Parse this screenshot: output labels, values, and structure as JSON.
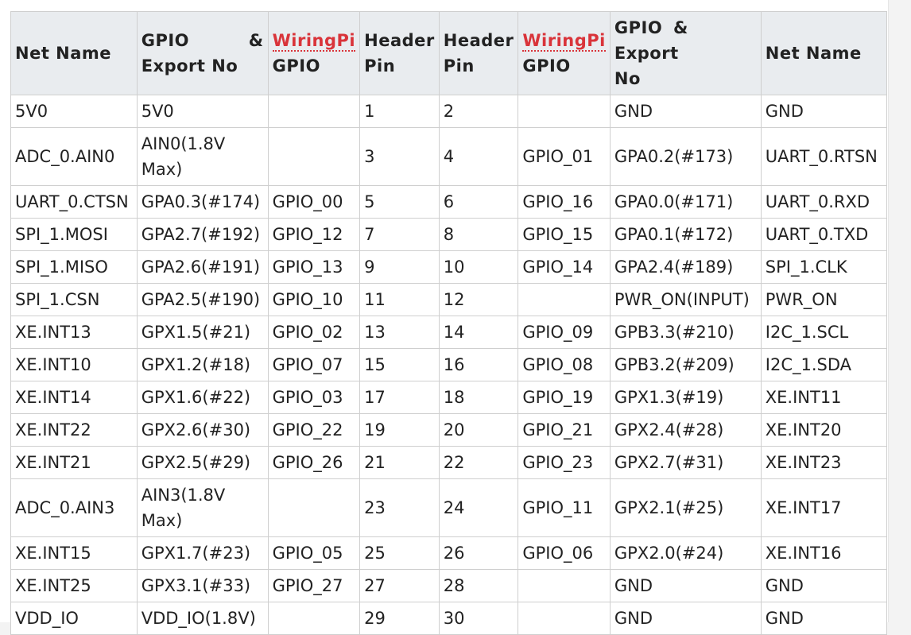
{
  "headers": {
    "net_name_left": "Net Name",
    "gpio_export_left_line1_a": "GPIO",
    "gpio_export_left_line1_b": "&",
    "gpio_export_left_line2": "Export No",
    "wiringpi_left": "WiringPi",
    "wiringpi_left_gpio": "GPIO",
    "header_left_line1": "Header",
    "header_left_line2": "Pin",
    "header_right_line1": "Header",
    "header_right_line2": "Pin",
    "wiringpi_right": "WiringPi",
    "wiringpi_right_gpio": "GPIO",
    "gpio_export_right_line1": "GPIO & Export",
    "gpio_export_right_line2": "No",
    "net_name_right": "Net Name"
  },
  "rows": [
    {
      "net_l": "5V0",
      "gpio_l": "5V0",
      "wp_l": "",
      "pin_l": "1",
      "pin_r": "2",
      "wp_r": "",
      "gpio_r": "GND",
      "net_r": "GND"
    },
    {
      "net_l": "ADC_0.AIN0",
      "gpio_l": "AIN0(1.8V Max)",
      "wp_l": "",
      "pin_l": "3",
      "pin_r": "4",
      "wp_r": "GPIO_01",
      "gpio_r": "GPA0.2(#173)",
      "net_r": "UART_0.RTSN"
    },
    {
      "net_l": "UART_0.CTSN",
      "gpio_l": "GPA0.3(#174)",
      "wp_l": "GPIO_00",
      "pin_l": "5",
      "pin_r": "6",
      "wp_r": "GPIO_16",
      "gpio_r": "GPA0.0(#171)",
      "net_r": "UART_0.RXD"
    },
    {
      "net_l": "SPI_1.MOSI",
      "gpio_l": "GPA2.7(#192)",
      "wp_l": "GPIO_12",
      "pin_l": "7",
      "pin_r": "8",
      "wp_r": "GPIO_15",
      "gpio_r": "GPA0.1(#172)",
      "net_r": "UART_0.TXD"
    },
    {
      "net_l": "SPI_1.MISO",
      "gpio_l": "GPA2.6(#191)",
      "wp_l": "GPIO_13",
      "pin_l": "9",
      "pin_r": "10",
      "wp_r": "GPIO_14",
      "gpio_r": "GPA2.4(#189)",
      "net_r": "SPI_1.CLK"
    },
    {
      "net_l": "SPI_1.CSN",
      "gpio_l": "GPA2.5(#190)",
      "wp_l": "GPIO_10",
      "pin_l": "11",
      "pin_r": "12",
      "wp_r": "",
      "gpio_r": "PWR_ON(INPUT)",
      "net_r": "PWR_ON"
    },
    {
      "net_l": "XE.INT13",
      "gpio_l": "GPX1.5(#21)",
      "wp_l": "GPIO_02",
      "pin_l": "13",
      "pin_r": "14",
      "wp_r": "GPIO_09",
      "gpio_r": "GPB3.3(#210)",
      "net_r": "I2C_1.SCL"
    },
    {
      "net_l": "XE.INT10",
      "gpio_l": "GPX1.2(#18)",
      "wp_l": "GPIO_07",
      "pin_l": "15",
      "pin_r": "16",
      "wp_r": "GPIO_08",
      "gpio_r": "GPB3.2(#209)",
      "net_r": "I2C_1.SDA"
    },
    {
      "net_l": "XE.INT14",
      "gpio_l": "GPX1.6(#22)",
      "wp_l": "GPIO_03",
      "pin_l": "17",
      "pin_r": "18",
      "wp_r": "GPIO_19",
      "gpio_r": "GPX1.3(#19)",
      "net_r": "XE.INT11"
    },
    {
      "net_l": "XE.INT22",
      "gpio_l": "GPX2.6(#30)",
      "wp_l": "GPIO_22",
      "pin_l": "19",
      "pin_r": "20",
      "wp_r": "GPIO_21",
      "gpio_r": "GPX2.4(#28)",
      "net_r": "XE.INT20"
    },
    {
      "net_l": "XE.INT21",
      "gpio_l": "GPX2.5(#29)",
      "wp_l": "GPIO_26",
      "pin_l": "21",
      "pin_r": "22",
      "wp_r": "GPIO_23",
      "gpio_r": "GPX2.7(#31)",
      "net_r": "XE.INT23"
    },
    {
      "net_l": "ADC_0.AIN3",
      "gpio_l": "AIN3(1.8V Max)",
      "wp_l": "",
      "pin_l": "23",
      "pin_r": "24",
      "wp_r": "GPIO_11",
      "gpio_r": "GPX2.1(#25)",
      "net_r": "XE.INT17"
    },
    {
      "net_l": "XE.INT15",
      "gpio_l": "GPX1.7(#23)",
      "wp_l": "GPIO_05",
      "pin_l": "25",
      "pin_r": "26",
      "wp_r": "GPIO_06",
      "gpio_r": "GPX2.0(#24)",
      "net_r": "XE.INT16"
    },
    {
      "net_l": "XE.INT25",
      "gpio_l": "GPX3.1(#33)",
      "wp_l": "GPIO_27",
      "pin_l": "27",
      "pin_r": "28",
      "wp_r": "",
      "gpio_r": "GND",
      "net_r": "GND"
    },
    {
      "net_l": "VDD_IO",
      "gpio_l": "VDD_IO(1.8V)",
      "wp_l": "",
      "pin_l": "29",
      "pin_r": "30",
      "wp_r": "",
      "gpio_r": "GND",
      "net_r": "GND"
    }
  ]
}
